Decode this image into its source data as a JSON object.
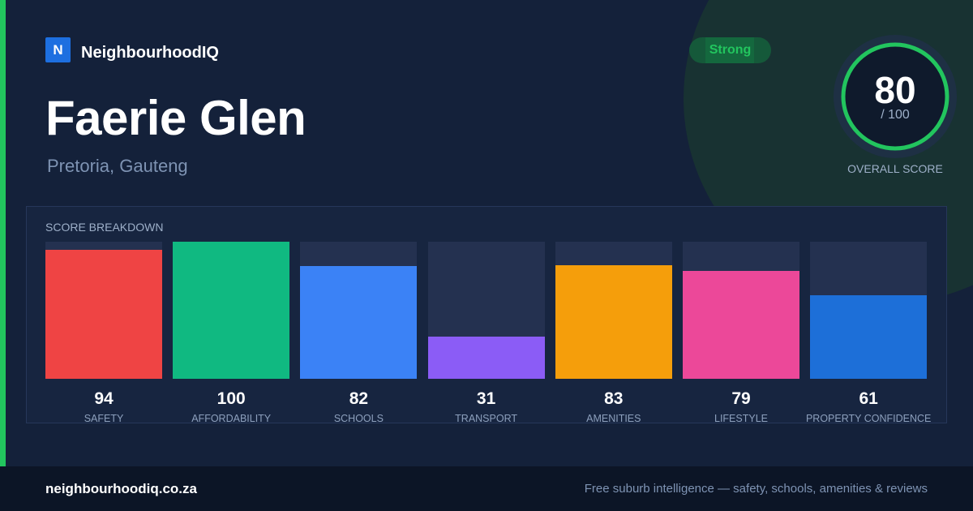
{
  "brand": {
    "logo_letter": "N",
    "name": "NeighbourhoodIQ"
  },
  "suburb": {
    "name": "Faerie Glen",
    "location": "Pretoria, Gauteng"
  },
  "rating_badge": "Strong",
  "overall_score": {
    "value": "80",
    "out_of": "/ 100",
    "max": 100,
    "caption": "OVERALL SCORE"
  },
  "breakdown": {
    "title": "SCORE BREAKDOWN"
  },
  "chart_data": {
    "type": "bar",
    "title": "SCORE BREAKDOWN",
    "categories": [
      "SAFETY",
      "AFFORDABILITY",
      "SCHOOLS",
      "TRANSPORT",
      "AMENITIES",
      "LIFESTYLE",
      "PROPERTY CONFIDENCE"
    ],
    "values": [
      94,
      100,
      82,
      31,
      83,
      79,
      61
    ],
    "ylim": [
      0,
      100
    ],
    "colors": [
      "#ef4444",
      "#10b981",
      "#3b82f6",
      "#8b5cf6",
      "#f59e0b",
      "#ec4899",
      "#1d6fd8"
    ],
    "grid": false
  },
  "footer": {
    "domain": "neighbourhoodiq.co.za",
    "tagline": "Free suburb intelligence — safety, schools, amenities & reviews"
  },
  "colors": {
    "background": "#14213a",
    "accent_green": "#22c55e",
    "brand_blue": "#1d6fe0",
    "footer_bg": "#0c1526"
  }
}
